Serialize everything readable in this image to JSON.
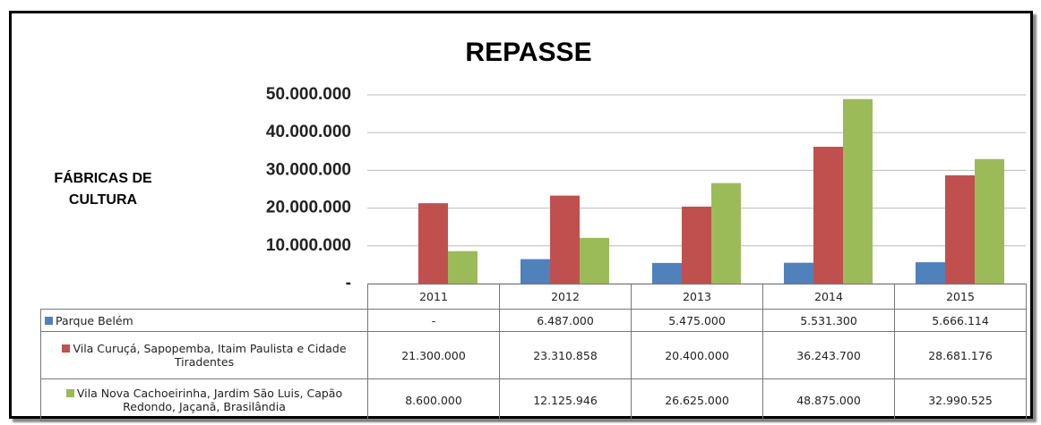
{
  "chart_data": {
    "type": "bar",
    "title": "REPASSE",
    "ylabel": "FÁBRICAS DE CULTURA",
    "categories": [
      "2011",
      "2012",
      "2013",
      "2014",
      "2015"
    ],
    "ylim": [
      0,
      50000000
    ],
    "yticks": [
      {
        "value": 0,
        "label": "-"
      },
      {
        "value": 10000000,
        "label": "10.000.000"
      },
      {
        "value": 20000000,
        "label": "20.000.000"
      },
      {
        "value": 30000000,
        "label": "30.000.000"
      },
      {
        "value": 40000000,
        "label": "40.000.000"
      },
      {
        "value": 50000000,
        "label": "50.000.000"
      }
    ],
    "grid": true,
    "series": [
      {
        "name": "Parque Belém",
        "color": "#4f81bd",
        "values": [
          null,
          6487000,
          5475000,
          5531300,
          5666114
        ],
        "value_labels": [
          "-",
          "6.487.000",
          "5.475.000",
          "5.531.300",
          "5.666.114"
        ]
      },
      {
        "name": "Vila Curuçá, Sapopemba, Itaim Paulista e Cidade Tiradentes",
        "color": "#c0504d",
        "values": [
          21300000,
          23310858,
          20400000,
          36243700,
          28681176
        ],
        "value_labels": [
          "21.300.000",
          "23.310.858",
          "20.400.000",
          "36.243.700",
          "28.681.176"
        ]
      },
      {
        "name": "Vila Nova Cachoeirinha, Jardim São Luis, Capão Redondo, Jaçanã, Brasilândia",
        "color": "#9bbb59",
        "values": [
          8600000,
          12125946,
          26625000,
          48875000,
          32990525
        ],
        "value_labels": [
          "8.600.000",
          "12.125.946",
          "26.625.000",
          "48.875.000",
          "32.990.525"
        ]
      }
    ]
  }
}
